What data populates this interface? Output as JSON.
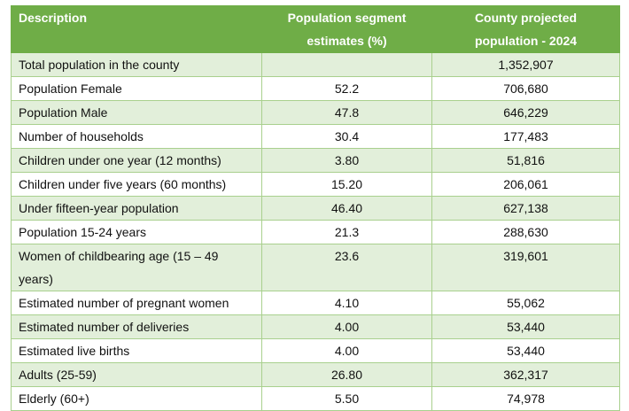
{
  "table": {
    "headers": {
      "description": "Description",
      "segment_line1": "Population segment",
      "segment_line2": "estimates (%)",
      "projected_line1": "County projected",
      "projected_line2": "population - 2024"
    },
    "rows": [
      {
        "description": "Total population in the county",
        "segment": "",
        "projected": "1,352,907"
      },
      {
        "description": "Population Female",
        "segment": "52.2",
        "projected": "706,680"
      },
      {
        "description": "Population Male",
        "segment": "47.8",
        "projected": "646,229"
      },
      {
        "description": "Number of households",
        "segment": "30.4",
        "projected": "177,483"
      },
      {
        "description": "Children under one year (12 months)",
        "segment": "3.80",
        "projected": "51,816"
      },
      {
        "description": "Children under five years (60 months)",
        "segment": "15.20",
        "projected": "206,061"
      },
      {
        "description": "Under fifteen-year population",
        "segment": "46.40",
        "projected": "627,138"
      },
      {
        "description": "Population 15-24 years",
        "segment": "21.3",
        "projected": "288,630"
      },
      {
        "description": "Women of childbearing age (15 – 49 years)",
        "segment": "23.6",
        "projected": "319,601"
      },
      {
        "description": "Estimated number of pregnant women",
        "segment": "4.10",
        "projected": "55,062"
      },
      {
        "description": "Estimated number of deliveries",
        "segment": "4.00",
        "projected": "53,440"
      },
      {
        "description": "Estimated live births",
        "segment": "4.00",
        "projected": "53,440"
      },
      {
        "description": "Adults (25-59)",
        "segment": "26.80",
        "projected": "362,317"
      },
      {
        "description": "Elderly (60+)",
        "segment": "5.50",
        "projected": "74,978"
      }
    ]
  },
  "colors": {
    "header_bg": "#6fad47",
    "header_text": "#ffffff",
    "band_bg": "#e2efda",
    "border": "#a9d08e"
  }
}
